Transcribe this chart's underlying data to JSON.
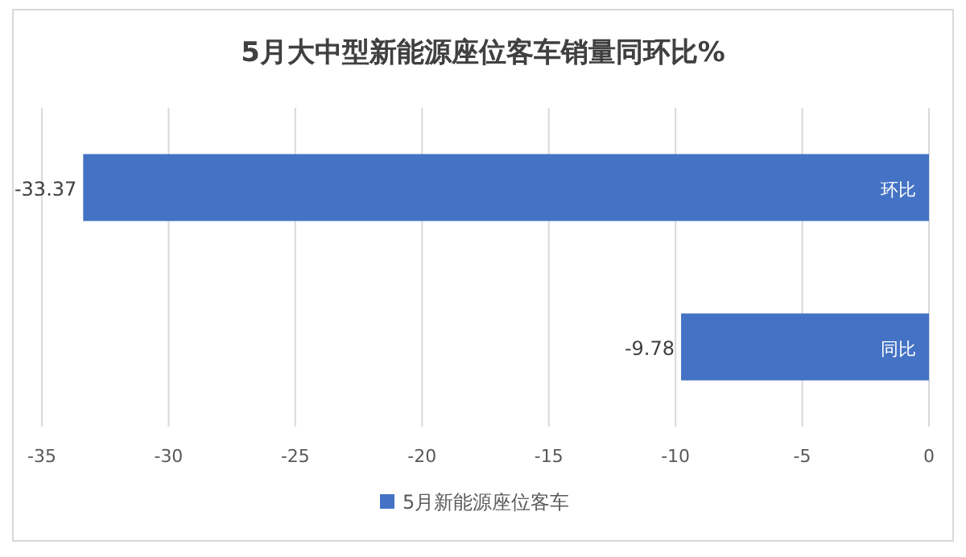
{
  "chart_data": {
    "type": "bar",
    "orientation": "horizontal",
    "title": "5月大中型新能源座位客车销量同环比%",
    "categories": [
      "环比",
      "同比"
    ],
    "series": [
      {
        "name": "5月新能源座位客车",
        "color": "#4472c4",
        "values": [
          -33.37,
          -9.78
        ]
      }
    ],
    "xlim": [
      -35,
      0
    ],
    "xticks": [
      -35,
      -30,
      -25,
      -20,
      -15,
      -10,
      -5,
      0
    ],
    "grid": "x",
    "legend": "bottom",
    "data_labels": true
  }
}
